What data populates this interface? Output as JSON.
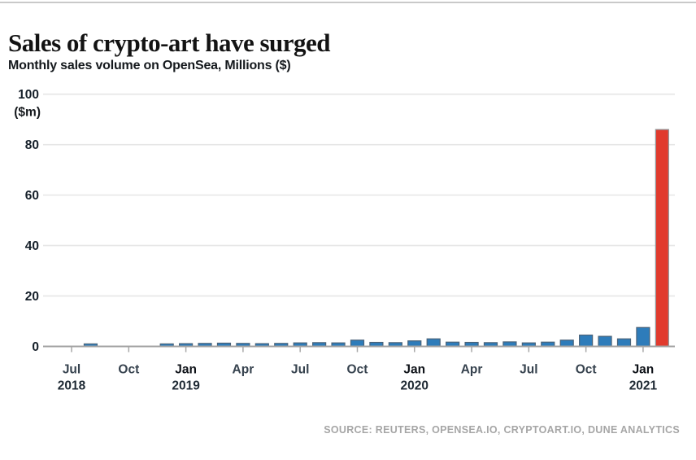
{
  "header": {
    "title": "Sales of crypto-art have surged",
    "subtitle": "Monthly sales volume on OpenSea, Millions ($)"
  },
  "footer": {
    "source": "SOURCE: REUTERS, OPENSEA.IO, CRYPTOART.IO, DUNE ANALYTICS"
  },
  "chart_data": {
    "type": "bar",
    "title": "Sales of crypto-art have surged",
    "subtitle": "Monthly sales volume on OpenSea, Millions ($)",
    "xlabel": "",
    "ylabel": "($m)",
    "unit_label": "($m)",
    "ylim": [
      0,
      100
    ],
    "y_ticks": [
      0,
      20,
      40,
      60,
      80,
      100
    ],
    "grid": "horizontal",
    "legend": "none",
    "categories": [
      "Jun 2018",
      "Jul 2018",
      "Aug 2018",
      "Sep 2018",
      "Oct 2018",
      "Nov 2018",
      "Dec 2018",
      "Jan 2019",
      "Feb 2019",
      "Mar 2019",
      "Apr 2019",
      "May 2019",
      "Jun 2019",
      "Jul 2019",
      "Aug 2019",
      "Sep 2019",
      "Oct 2019",
      "Nov 2019",
      "Dec 2019",
      "Jan 2020",
      "Feb 2020",
      "Mar 2020",
      "Apr 2020",
      "May 2020",
      "Jun 2020",
      "Jul 2020",
      "Aug 2020",
      "Sep 2020",
      "Oct 2020",
      "Nov 2020",
      "Dec 2020",
      "Jan 2021",
      "Feb 2021"
    ],
    "values": [
      0.1,
      0.1,
      1.0,
      0.1,
      0.1,
      0.1,
      1.0,
      1.1,
      1.2,
      1.3,
      1.2,
      1.1,
      1.2,
      1.4,
      1.5,
      1.4,
      2.5,
      1.6,
      1.5,
      2.2,
      3.0,
      1.7,
      1.6,
      1.5,
      1.8,
      1.4,
      1.7,
      2.5,
      4.5,
      4.0,
      3.0,
      7.5,
      86
    ],
    "highlight_index": 32,
    "x_ticks": [
      {
        "index": 1,
        "label": "Jul",
        "year": "2018",
        "emphasis": false
      },
      {
        "index": 4,
        "label": "Oct",
        "year": "",
        "emphasis": false
      },
      {
        "index": 7,
        "label": "Jan",
        "year": "2019",
        "emphasis": true
      },
      {
        "index": 10,
        "label": "Apr",
        "year": "",
        "emphasis": false
      },
      {
        "index": 13,
        "label": "Jul",
        "year": "",
        "emphasis": false
      },
      {
        "index": 16,
        "label": "Oct",
        "year": "",
        "emphasis": false
      },
      {
        "index": 19,
        "label": "Jan",
        "year": "2020",
        "emphasis": true
      },
      {
        "index": 22,
        "label": "Apr",
        "year": "",
        "emphasis": false
      },
      {
        "index": 25,
        "label": "Jul",
        "year": "",
        "emphasis": false
      },
      {
        "index": 28,
        "label": "Oct",
        "year": "",
        "emphasis": false
      },
      {
        "index": 31,
        "label": "Jan",
        "year": "2021",
        "emphasis": true
      }
    ],
    "colors": {
      "bar": "#2e7cba",
      "bar_border": "#4a6379",
      "highlight": "#e13a2d",
      "highlight_border": "#90989c",
      "grid": "#e6e6e6",
      "baseline": "#a3a3a3",
      "tick_mark": "#a8a8a8",
      "y_label": "#16202a",
      "x_label": "#36424e",
      "x_label_emphasis": "#0d1117",
      "year_label": "#1f2a34",
      "unit_label": "#15191d"
    }
  }
}
